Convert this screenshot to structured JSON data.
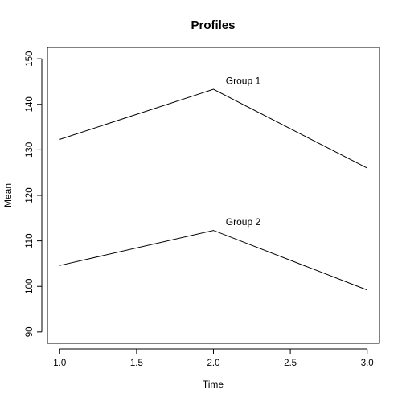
{
  "chart_data": {
    "type": "line",
    "title": "Profiles",
    "xlabel": "Time",
    "ylabel": "Mean",
    "x": [
      1.0,
      2.0,
      3.0
    ],
    "xlim": [
      0.92,
      3.08
    ],
    "ylim": [
      87.5,
      152.5
    ],
    "xticks": [
      1.0,
      1.5,
      2.0,
      2.5,
      3.0
    ],
    "xtick_labels": [
      "1.0",
      "1.5",
      "2.0",
      "2.5",
      "3.0"
    ],
    "yticks": [
      90,
      100,
      110,
      120,
      130,
      140,
      150
    ],
    "ytick_labels": [
      "90",
      "100",
      "110",
      "120",
      "130",
      "140",
      "150"
    ],
    "grid": false,
    "series": [
      {
        "name": "Group 1",
        "values": [
          132.3,
          143.3,
          126.0
        ],
        "label_at": {
          "x": 2.08,
          "y": 144.5
        }
      },
      {
        "name": "Group 2",
        "values": [
          104.6,
          112.3,
          99.2
        ],
        "label_at": {
          "x": 2.08,
          "y": 113.5
        }
      }
    ]
  }
}
